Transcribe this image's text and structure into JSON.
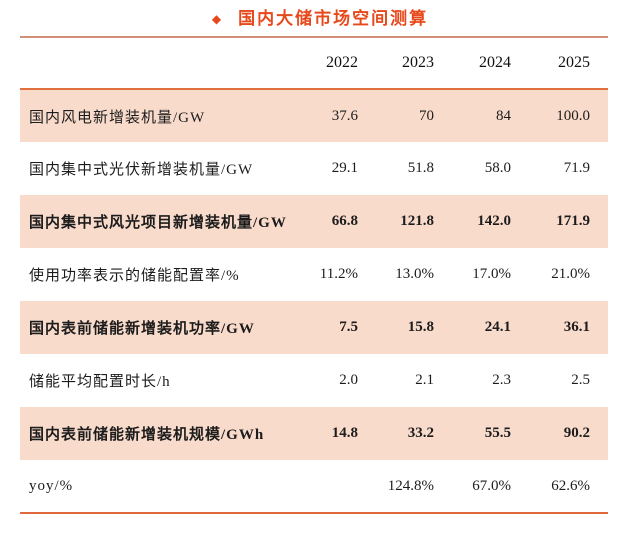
{
  "title": {
    "bullet": "◆",
    "text": "国内大储市场空间测算"
  },
  "colors": {
    "accent_orange": "#E8491C",
    "rule_orange": "#E2703E",
    "rule_top_muted": "#CF9076",
    "row_highlight_pink": "#F9DBCC",
    "text_dark": "#1C1C1C"
  },
  "chart_data": {
    "type": "table",
    "title": "国内大储市场空间测算",
    "columns": [
      "",
      "2022",
      "2023",
      "2024",
      "2025"
    ],
    "rows": [
      {
        "label": "国内风电新增装机量/GW",
        "values": [
          "37.6",
          "70",
          "84",
          "100.0"
        ],
        "highlight": true,
        "bold": false
      },
      {
        "label": "国内集中式光伏新增装机量/GW",
        "values": [
          "29.1",
          "51.8",
          "58.0",
          "71.9"
        ],
        "highlight": false,
        "bold": false
      },
      {
        "label": "国内集中式风光项目新增装机量/GW",
        "values": [
          "66.8",
          "121.8",
          "142.0",
          "171.9"
        ],
        "highlight": true,
        "bold": true
      },
      {
        "label": "使用功率表示的储能配置率/%",
        "values": [
          "11.2%",
          "13.0%",
          "17.0%",
          "21.0%"
        ],
        "highlight": false,
        "bold": false
      },
      {
        "label": "国内表前储能新增装机功率/GW",
        "values": [
          "7.5",
          "15.8",
          "24.1",
          "36.1"
        ],
        "highlight": true,
        "bold": true
      },
      {
        "label": "储能平均配置时长/h",
        "values": [
          "2.0",
          "2.1",
          "2.3",
          "2.5"
        ],
        "highlight": false,
        "bold": false
      },
      {
        "label": "国内表前储能新增装机规模/GWh",
        "values": [
          "14.8",
          "33.2",
          "55.5",
          "90.2"
        ],
        "highlight": true,
        "bold": true
      },
      {
        "label": "yoy/%",
        "values": [
          "",
          "124.8%",
          "67.0%",
          "62.6%"
        ],
        "highlight": false,
        "bold": false
      }
    ]
  }
}
